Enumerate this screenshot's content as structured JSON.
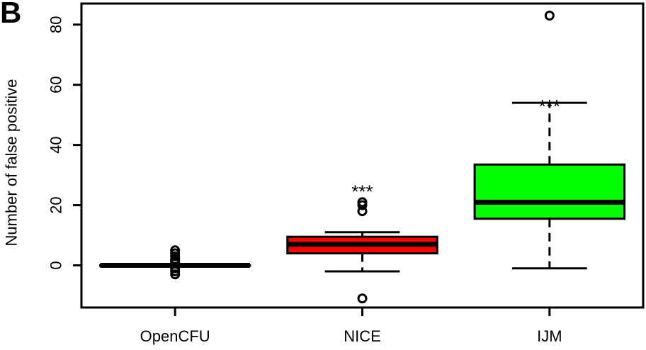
{
  "panel_label": "B",
  "chart_data": {
    "type": "boxplot",
    "title": "",
    "xlabel": "",
    "ylabel": "Number of false positive",
    "ylim": [
      -14,
      87
    ],
    "yticks": [
      0,
      20,
      40,
      60,
      80
    ],
    "grid": false,
    "legend": "none",
    "categories": [
      "OpenCFU",
      "NICE",
      "IJM"
    ],
    "boxes": [
      {
        "category": "OpenCFU",
        "color": "#000000",
        "whisker_low": 0,
        "q1": 0,
        "median": 0,
        "q3": 0,
        "whisker_high": 0,
        "outliers": [
          5,
          4,
          3,
          2,
          1.5,
          1,
          -1,
          -2,
          -3
        ],
        "annotation": ""
      },
      {
        "category": "NICE",
        "color": "#ff0000",
        "whisker_low": -2,
        "q1": 4,
        "median": 7,
        "q3": 9.5,
        "whisker_high": 11,
        "outliers": [
          21,
          20,
          18,
          -11
        ],
        "annotation": "***"
      },
      {
        "category": "IJM",
        "color": "#00ff00",
        "whisker_low": -1,
        "q1": 15.5,
        "median": 21,
        "q3": 33.5,
        "whisker_high": 54,
        "outliers": [
          83
        ],
        "annotation": "***"
      }
    ]
  }
}
